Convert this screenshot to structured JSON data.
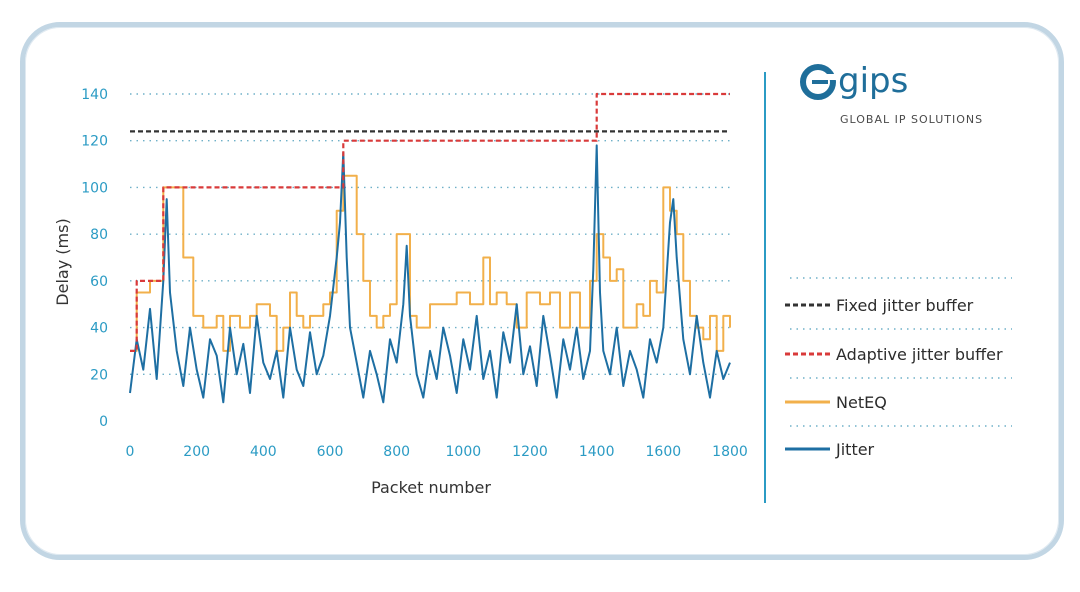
{
  "chart_data": {
    "type": "line",
    "title": "",
    "xlabel": "Packet number",
    "ylabel": "Delay (ms)",
    "xlim": [
      0,
      1800
    ],
    "ylim": [
      0,
      140
    ],
    "xticks": [
      0,
      200,
      400,
      600,
      800,
      1000,
      1200,
      1400,
      1600,
      1800
    ],
    "yticks": [
      0,
      20,
      40,
      60,
      80,
      100,
      120,
      140
    ],
    "grid": "horizontal dotted",
    "legend_position": "right",
    "series": [
      {
        "name": "Fixed jitter buffer",
        "color": "#333333",
        "style": "dashed",
        "x": [
          0,
          1800
        ],
        "y": [
          124,
          124
        ]
      },
      {
        "name": "Adaptive jitter buffer",
        "color": "#d93a3a",
        "style": "dashed",
        "step": true,
        "x": [
          0,
          20,
          20,
          100,
          100,
          640,
          640,
          1400,
          1400,
          1800
        ],
        "y": [
          30,
          30,
          60,
          60,
          100,
          100,
          120,
          120,
          140,
          140
        ]
      },
      {
        "name": "NetEQ",
        "color": "#f2b04b",
        "style": "solid",
        "step": true,
        "x": [
          0,
          20,
          60,
          100,
          140,
          160,
          190,
          200,
          220,
          260,
          280,
          300,
          330,
          360,
          380,
          420,
          440,
          460,
          480,
          500,
          520,
          540,
          560,
          580,
          600,
          620,
          640,
          660,
          680,
          700,
          720,
          740,
          760,
          780,
          800,
          820,
          840,
          860,
          880,
          900,
          940,
          980,
          1020,
          1060,
          1080,
          1100,
          1130,
          1160,
          1190,
          1230,
          1260,
          1290,
          1320,
          1350,
          1380,
          1400,
          1420,
          1440,
          1460,
          1480,
          1500,
          1520,
          1540,
          1560,
          1580,
          1600,
          1620,
          1640,
          1660,
          1680,
          1700,
          1720,
          1740,
          1760,
          1780,
          1800
        ],
        "y": [
          30,
          55,
          60,
          100,
          100,
          70,
          45,
          45,
          40,
          45,
          30,
          45,
          40,
          45,
          50,
          45,
          30,
          40,
          55,
          45,
          40,
          45,
          45,
          50,
          55,
          90,
          105,
          105,
          80,
          60,
          45,
          40,
          45,
          50,
          80,
          80,
          45,
          40,
          40,
          50,
          50,
          55,
          50,
          70,
          50,
          55,
          50,
          40,
          55,
          50,
          55,
          40,
          55,
          40,
          60,
          80,
          70,
          60,
          65,
          40,
          40,
          50,
          45,
          60,
          55,
          100,
          90,
          80,
          60,
          45,
          40,
          35,
          45,
          30,
          45,
          40
        ]
      },
      {
        "name": "Jitter",
        "color": "#1e6fa3",
        "style": "solid",
        "x": [
          0,
          20,
          40,
          60,
          80,
          100,
          110,
          120,
          140,
          160,
          180,
          200,
          220,
          240,
          260,
          280,
          300,
          320,
          340,
          360,
          380,
          400,
          420,
          440,
          460,
          480,
          500,
          520,
          540,
          560,
          580,
          600,
          620,
          630,
          640,
          650,
          660,
          680,
          700,
          720,
          740,
          760,
          780,
          800,
          820,
          830,
          840,
          860,
          880,
          900,
          920,
          940,
          960,
          980,
          1000,
          1020,
          1040,
          1060,
          1080,
          1100,
          1120,
          1140,
          1160,
          1180,
          1200,
          1220,
          1240,
          1260,
          1280,
          1300,
          1320,
          1340,
          1360,
          1380,
          1390,
          1400,
          1410,
          1420,
          1440,
          1460,
          1480,
          1500,
          1520,
          1540,
          1560,
          1580,
          1600,
          1620,
          1630,
          1640,
          1660,
          1680,
          1700,
          1720,
          1740,
          1760,
          1780,
          1800
        ],
        "y": [
          12,
          35,
          22,
          48,
          18,
          60,
          95,
          55,
          30,
          15,
          40,
          22,
          10,
          35,
          28,
          8,
          40,
          20,
          33,
          12,
          45,
          25,
          18,
          30,
          10,
          40,
          22,
          15,
          38,
          20,
          28,
          45,
          70,
          85,
          115,
          70,
          40,
          25,
          10,
          30,
          20,
          8,
          35,
          25,
          50,
          75,
          45,
          20,
          10,
          30,
          18,
          40,
          28,
          12,
          35,
          22,
          45,
          18,
          30,
          10,
          38,
          25,
          50,
          20,
          32,
          15,
          45,
          28,
          10,
          35,
          22,
          40,
          18,
          30,
          65,
          118,
          55,
          30,
          20,
          40,
          15,
          30,
          22,
          10,
          35,
          25,
          40,
          85,
          95,
          70,
          35,
          20,
          45,
          25,
          10,
          30,
          18,
          25
        ]
      }
    ]
  },
  "brand": {
    "name": "gips",
    "tagline": "GLOBAL IP SOLUTIONS"
  }
}
